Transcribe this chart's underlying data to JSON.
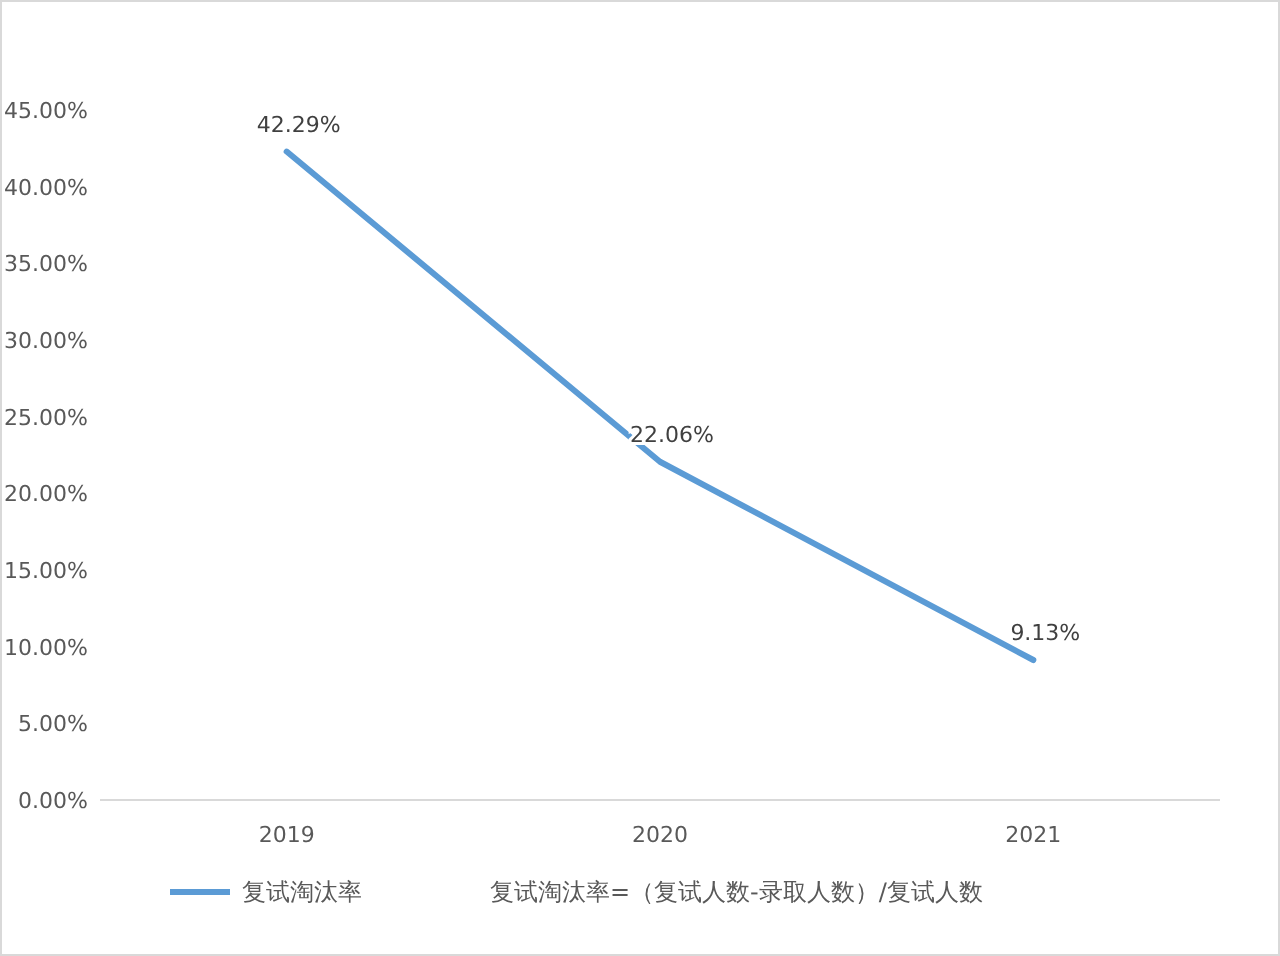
{
  "chart_data": {
    "type": "line",
    "categories": [
      "2019",
      "2020",
      "2021"
    ],
    "series": [
      {
        "name": "复试淘汰率",
        "color": "#5b9bd5",
        "values": [
          42.29,
          22.06,
          9.13
        ],
        "value_labels": [
          "42.29%",
          "22.06%",
          "9.13%"
        ]
      }
    ],
    "ylim": [
      0,
      45
    ],
    "yticks": [
      {
        "value": 0,
        "label": "0.00%"
      },
      {
        "value": 5,
        "label": "5.00%"
      },
      {
        "value": 10,
        "label": "10.00%"
      },
      {
        "value": 15,
        "label": "15.00%"
      },
      {
        "value": 20,
        "label": "20.00%"
      },
      {
        "value": 25,
        "label": "25.00%"
      },
      {
        "value": 30,
        "label": "30.00%"
      },
      {
        "value": 35,
        "label": "35.00%"
      },
      {
        "value": 40,
        "label": "40.00%"
      },
      {
        "value": 45,
        "label": "45.00%"
      }
    ],
    "grid": false,
    "legend": "bottom",
    "marker": "none",
    "line_style": "solid",
    "annotations": [
      "复试淘汰率=（复试人数-录取人数）/复试人数"
    ]
  }
}
